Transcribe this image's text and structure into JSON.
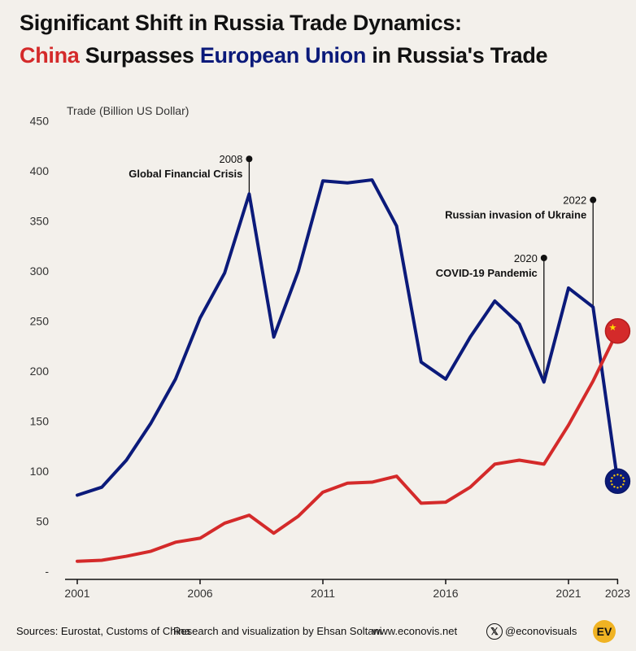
{
  "title": {
    "line1": "Significant Shift in Russia Trade Dynamics:",
    "line2_part1": "China",
    "line2_part2": " Surpasses ",
    "line2_part3": "European Union",
    "line2_part4": " in Russia's Trade"
  },
  "colors": {
    "china": "#d42a2a",
    "eu": "#0b1a7a",
    "axis_text": "#333333",
    "background": "#f3f0eb"
  },
  "chart_data": {
    "type": "line",
    "ylabel": "Trade (Billion US Dollar)",
    "ylim": [
      0,
      450
    ],
    "yticks": [
      0,
      50,
      100,
      150,
      200,
      250,
      300,
      350,
      400,
      450
    ],
    "ytick_labels": [
      "-",
      "50",
      "100",
      "150",
      "200",
      "250",
      "300",
      "350",
      "400",
      "450"
    ],
    "xticks": [
      2001,
      2006,
      2011,
      2016,
      2021,
      2023
    ],
    "grid": false,
    "x": [
      2001,
      2002,
      2003,
      2004,
      2005,
      2006,
      2007,
      2008,
      2009,
      2010,
      2011,
      2012,
      2013,
      2014,
      2015,
      2016,
      2017,
      2018,
      2019,
      2020,
      2021,
      2022,
      2023
    ],
    "series": [
      {
        "key": "eu",
        "values": [
          76,
          84,
          111,
          148,
          192,
          253,
          298,
          377,
          234,
          300,
          390,
          388,
          391,
          345,
          209,
          192,
          234,
          270,
          247,
          189,
          283,
          264,
          90
        ]
      },
      {
        "key": "china",
        "values": [
          10,
          11,
          15,
          20,
          29,
          33,
          48,
          56,
          38,
          55,
          79,
          88,
          89,
          95,
          68,
          69,
          84,
          107,
          111,
          107,
          146,
          190,
          240
        ]
      }
    ],
    "annotations": [
      {
        "year": 2008,
        "value": 377,
        "tip": 412,
        "label_year": "2008",
        "label_text": "Global Financial Crisis"
      },
      {
        "year": 2020,
        "value": 189,
        "tip": 313,
        "label_year": "2020",
        "label_text": "COVID-19 Pandemic"
      },
      {
        "year": 2022,
        "value": 264,
        "tip": 371,
        "label_year": "2022",
        "label_text": "Russian invasion of Ukraine"
      }
    ]
  },
  "footer": {
    "sources": "Sources: Eurostat, Customs of China",
    "credit": "Research and visualization by Ehsan Soltani",
    "website": "www.econovis.net",
    "x_glyph": "𝕏",
    "handle": "@econovisuals",
    "logo_text": "EV"
  }
}
